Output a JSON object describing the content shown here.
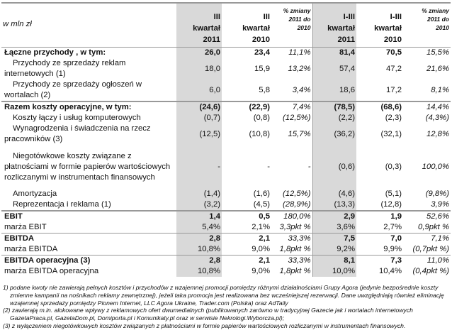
{
  "header": {
    "label": "w mln zł",
    "cols": [
      [
        "III",
        "kwartał",
        "2011"
      ],
      [
        "III",
        "kwartał",
        "2010"
      ],
      [
        "% zmiany",
        "2011 do",
        "2010"
      ],
      [
        "I-III",
        "kwartał",
        "2011"
      ],
      [
        "I-III",
        "kwartał",
        "2010"
      ],
      [
        "% zmiany",
        "2011 do",
        "2010"
      ]
    ]
  },
  "rows": [
    {
      "label": "Łączne przychody , w tym:",
      "v": [
        "26,0",
        "23,4",
        "11,1%",
        "81,4",
        "70,5",
        "15,5%"
      ]
    },
    {
      "label": "Przychody ze sprzedaży reklam internetowych (1)",
      "v": [
        "18,0",
        "15,9",
        "13,2%",
        "57,4",
        "47,2",
        "21,6%"
      ]
    },
    {
      "label": "Przychody ze sprzedaży ogłoszeń w wortalach (2)",
      "v": [
        "6,0",
        "5,8",
        "3,4%",
        "18,6",
        "17,2",
        "8,1%"
      ]
    },
    {
      "label": "Razem koszty operacyjne, w tym:",
      "v": [
        "(24,6)",
        "(22,9)",
        "7,4%",
        "(78,5)",
        "(68,6)",
        "14,4%"
      ]
    },
    {
      "label": "Koszty łączy i usług komputerowych",
      "v": [
        "(0,7)",
        "(0,8)",
        "(12,5%)",
        "(2,2)",
        "(2,3)",
        "(4,3%)"
      ]
    },
    {
      "label": "Wynagrodzenia i świadczenia na rzecz pracowników (3)",
      "v": [
        "(12,5)",
        "(10,8)",
        "15,7%",
        "(36,2)",
        "(32,1)",
        "12,8%"
      ]
    },
    {
      "label": "Niegotówkowe koszty związane z płatnościami w formie papierów wartościowych rozliczanymi w instrumentach finansowych",
      "v": [
        "-",
        "-",
        "-",
        "(0,6)",
        "(0,3)",
        "100,0%"
      ]
    },
    {
      "label": "Amortyzacja",
      "v": [
        "(1,4)",
        "(1,6)",
        "(12,5%)",
        "(4,6)",
        "(5,1)",
        "(9,8%)"
      ]
    },
    {
      "label": "Reprezentacja i reklama (1)",
      "v": [
        "(3,2)",
        "(4,5)",
        "(28,9%)",
        "(13,3)",
        "(12,8)",
        "3,9%"
      ]
    },
    {
      "label": "EBIT",
      "v": [
        "1,4",
        "0,5",
        "180,0%",
        "2,9",
        "1,9",
        "52,6%"
      ]
    },
    {
      "label": "marża EBIT",
      "v": [
        "5,4%",
        "2,1%",
        "3,3pkt %",
        "3,6%",
        "2,7%",
        "0,9pkt %"
      ]
    },
    {
      "label": "EBITDA",
      "v": [
        "2,8",
        "2,1",
        "33,3%",
        "7,5",
        "7,0",
        "7,1%"
      ]
    },
    {
      "label": "marża EBITDA",
      "v": [
        "10,8%",
        "9,0%",
        "1,8pkt %",
        "9,2%",
        "9,9%",
        "(0,7pkt %)"
      ]
    },
    {
      "label": "EBITDA operacyjna (3)",
      "v": [
        "2,8",
        "2,1",
        "33,3%",
        "8,1",
        "7,3",
        "11,0%"
      ]
    },
    {
      "label": "marża EBITDA operacyjna",
      "v": [
        "10,8%",
        "9,0%",
        "1,8pkt %",
        "10,0%",
        "10,4%",
        "(0,4pkt %)"
      ]
    }
  ],
  "notes": [
    "1) podane kwoty nie zawierają pełnych kosztów i przychodów z wzajemnej promocji pomiędzy różnymi działalnościami Grupy Agora (jedynie bezpośrednie koszty zmienne kampanii na nośnikach reklamy zewnętrznej), jeżeli taka promocja jest realizowana bez wcześniejszej rezerwacji. Dane uwzględniają również eliminację wzajemnej sprzedaży pomiędzy Pionem Internet, LLC Agora Ukraine, Trader.com (Polska) oraz AdTaily",
    "(2) zawierają m.in. alokowane wpływy z reklamowych ofert dwumedialnych (publikowanych zarówno w tradycyjnej Gazecie jak i wortalach internetowych GazetaPraca.pl, GazetaDom.pl, Domiporta.pl i Komunikaty.pl oraz w serwisie Nekrologi.Wyborcza.pl);",
    "(3) z wyłączeniem niegotówkowych kosztów związanych z płatnościami w formie papierów wartościowych rozliczanymi w instrumentach finansowych."
  ]
}
